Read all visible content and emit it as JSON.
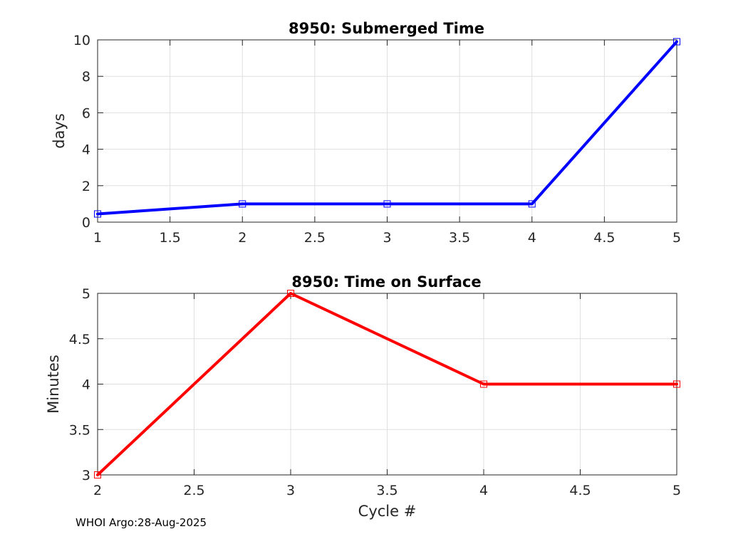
{
  "chart_data": [
    {
      "type": "line",
      "title": "8950: Submerged Time",
      "xlabel": "",
      "ylabel": "days",
      "x": [
        1,
        2,
        3,
        4,
        5
      ],
      "series": [
        {
          "name": "Submerged Time",
          "color": "#0000ff",
          "values": [
            0.45,
            1.0,
            1.0,
            1.0,
            9.9
          ]
        }
      ],
      "xlim": [
        1,
        5
      ],
      "ylim": [
        0,
        10
      ],
      "xticks": [
        1,
        1.5,
        2,
        2.5,
        3,
        3.5,
        4,
        4.5,
        5
      ],
      "xtick_labels": [
        "1",
        "1.5",
        "2",
        "2.5",
        "3",
        "3.5",
        "4",
        "4.5",
        "5"
      ],
      "yticks": [
        0,
        2,
        4,
        6,
        8,
        10
      ],
      "ytick_labels": [
        "0",
        "2",
        "4",
        "6",
        "8",
        "10"
      ],
      "grid": true,
      "marker": "square"
    },
    {
      "type": "line",
      "title": "8950: Time on Surface",
      "xlabel": "Cycle #",
      "ylabel": "Minutes",
      "x": [
        2,
        3,
        4,
        5
      ],
      "series": [
        {
          "name": "Time on Surface",
          "color": "#ff0000",
          "values": [
            3,
            5,
            4,
            4
          ]
        }
      ],
      "xlim": [
        2,
        5
      ],
      "ylim": [
        3,
        5
      ],
      "xticks": [
        2,
        2.5,
        3,
        3.5,
        4,
        4.5,
        5
      ],
      "xtick_labels": [
        "2",
        "2.5",
        "3",
        "3.5",
        "4",
        "4.5",
        "5"
      ],
      "yticks": [
        3,
        3.5,
        4,
        4.5,
        5
      ],
      "ytick_labels": [
        "3",
        "3.5",
        "4",
        "4.5",
        "5"
      ],
      "grid": true,
      "marker": "square"
    }
  ],
  "footer": {
    "text": "WHOI Argo:28-Aug-2025"
  }
}
